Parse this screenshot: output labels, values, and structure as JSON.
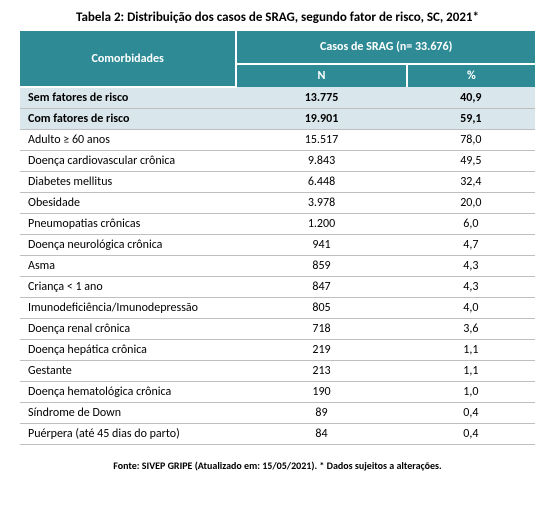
{
  "title": "Tabela 2: Distribuição dos casos de SRAG, segundo fator de risco, SC, 2021*",
  "header": {
    "comorbidities": "Comorbidades",
    "cases_header": "Casos de SRAG (n= 33.676)",
    "col_n": "N",
    "col_pct": "%"
  },
  "colors": {
    "header_bg": "#2e8b96",
    "header_text": "#ffffff",
    "summary_bg": "#d9e6ec",
    "row_border": "#bfbfbf",
    "text": "#000000",
    "page_bg": "#ffffff"
  },
  "summary_rows": [
    {
      "label": "Sem fatores de risco",
      "n": "13.775",
      "pct": "40,9"
    },
    {
      "label": "Com fatores de risco",
      "n": "19.901",
      "pct": "59,1"
    }
  ],
  "rows": [
    {
      "label": "Adulto ≥ 60 anos",
      "n": "15.517",
      "pct": "78,0"
    },
    {
      "label": "Doença cardiovascular crônica",
      "n": "9.843",
      "pct": "49,5"
    },
    {
      "label": "Diabetes mellitus",
      "n": "6.448",
      "pct": "32,4"
    },
    {
      "label": "Obesidade",
      "n": "3.978",
      "pct": "20,0"
    },
    {
      "label": "Pneumopatias crônicas",
      "n": "1.200",
      "pct": "6,0"
    },
    {
      "label": "Doença neurológica crônica",
      "n": "941",
      "pct": "4,7"
    },
    {
      "label": "Asma",
      "n": "859",
      "pct": "4,3"
    },
    {
      "label": "Criança < 1 ano",
      "n": "847",
      "pct": "4,3"
    },
    {
      "label": "Imunodeficiência/Imunodepressão",
      "n": "805",
      "pct": "4,0"
    },
    {
      "label": "Doença renal crônica",
      "n": "718",
      "pct": "3,6"
    },
    {
      "label": "Doença hepática crônica",
      "n": "219",
      "pct": "1,1"
    },
    {
      "label": "Gestante",
      "n": "213",
      "pct": "1,1"
    },
    {
      "label": "Doença hematológica crônica",
      "n": "190",
      "pct": "1,0"
    },
    {
      "label": "Síndrome de Down",
      "n": "89",
      "pct": "0,4"
    },
    {
      "label": "Puérpera (até 45 dias do parto)",
      "n": "84",
      "pct": "0,4"
    }
  ],
  "footnote": "Fonte: SIVEP GRIPE (Atualizado em: 15/05/2021). * Dados sujeitos a alterações."
}
